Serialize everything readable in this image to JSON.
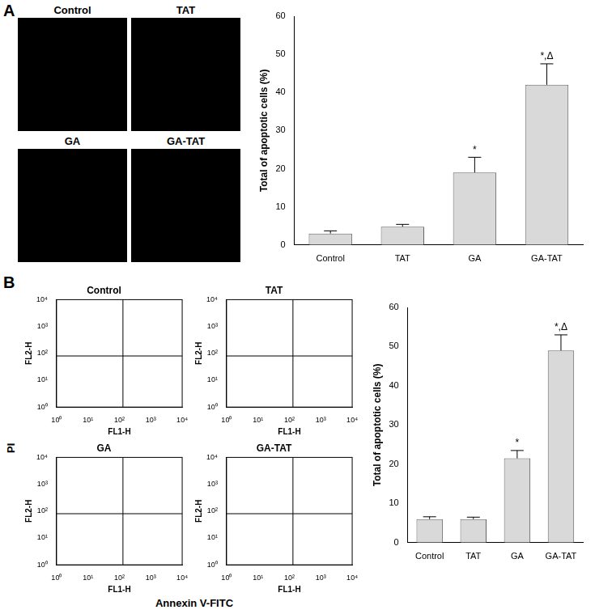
{
  "panel_labels": [
    "A",
    "B"
  ],
  "micrographs": {
    "labels": [
      "Control",
      "TAT",
      "GA",
      "GA-TAT"
    ]
  },
  "flow_axis_labels": {
    "x": "Annexin V-FITC",
    "y": "PI"
  },
  "chart_data": [
    {
      "type": "bar",
      "panel": "A",
      "y_label": "Total of apoptotic cells (%)",
      "categories": [
        "Control",
        "TAT",
        "GA",
        "GA-TAT"
      ],
      "values": [
        3,
        4.8,
        19,
        42
      ],
      "errors": [
        0.7,
        0.6,
        4,
        5.5
      ],
      "annotations": [
        null,
        null,
        "*",
        "*,Δ"
      ],
      "color": "#d9d9d9",
      "ylim": [
        0,
        60
      ],
      "yticks": [
        0,
        10,
        20,
        30,
        40,
        50,
        60
      ],
      "grid": false
    },
    {
      "type": "scatter",
      "panel": "B",
      "title": "Control",
      "x_label": "FL1-H",
      "y_label": "FL2-H",
      "log": true,
      "grid": false,
      "xlim": [
        1,
        10000
      ],
      "ylim": [
        1,
        10000
      ],
      "xticks": [
        {
          "value": 1,
          "label": "10⁰"
        },
        {
          "value": 10,
          "label": "10¹"
        },
        {
          "value": 100,
          "label": "10²"
        },
        {
          "value": 1000,
          "label": "10³"
        },
        {
          "value": 10000,
          "label": "10⁴"
        }
      ],
      "yticks": [
        {
          "value": 1,
          "label": "10⁰"
        },
        {
          "value": 10,
          "label": "10¹"
        },
        {
          "value": 100,
          "label": "10²"
        },
        {
          "value": 1000,
          "label": "10³"
        },
        {
          "value": 10000,
          "label": "10⁴"
        }
      ],
      "quadrant_gates": {
        "x": 130,
        "y": 80
      }
    },
    {
      "type": "scatter",
      "panel": "B",
      "title": "TAT",
      "x_label": "FL1-H",
      "y_label": "FL2-H",
      "log": true,
      "grid": false,
      "xlim": [
        1,
        10000
      ],
      "ylim": [
        1,
        10000
      ],
      "xticks": [
        {
          "value": 1,
          "label": "10⁰"
        },
        {
          "value": 10,
          "label": "10¹"
        },
        {
          "value": 100,
          "label": "10²"
        },
        {
          "value": 1000,
          "label": "10³"
        },
        {
          "value": 10000,
          "label": "10⁴"
        }
      ],
      "yticks": [
        {
          "value": 1,
          "label": "10⁰"
        },
        {
          "value": 10,
          "label": "10¹"
        },
        {
          "value": 100,
          "label": "10²"
        },
        {
          "value": 1000,
          "label": "10³"
        },
        {
          "value": 10000,
          "label": "10⁴"
        }
      ],
      "quadrant_gates": {
        "x": 130,
        "y": 80
      }
    },
    {
      "type": "scatter",
      "panel": "B",
      "title": "GA",
      "x_label": "FL1-H",
      "y_label": "FL2-H",
      "log": true,
      "grid": false,
      "xlim": [
        1,
        10000
      ],
      "ylim": [
        1,
        10000
      ],
      "xticks": [
        {
          "value": 1,
          "label": "10⁰"
        },
        {
          "value": 10,
          "label": "10¹"
        },
        {
          "value": 100,
          "label": "10²"
        },
        {
          "value": 1000,
          "label": "10³"
        },
        {
          "value": 10000,
          "label": "10⁴"
        }
      ],
      "yticks": [
        {
          "value": 1,
          "label": "10⁰"
        },
        {
          "value": 10,
          "label": "10¹"
        },
        {
          "value": 100,
          "label": "10²"
        },
        {
          "value": 1000,
          "label": "10³"
        },
        {
          "value": 10000,
          "label": "10⁴"
        }
      ],
      "quadrant_gates": {
        "x": 130,
        "y": 80
      }
    },
    {
      "type": "scatter",
      "panel": "B",
      "title": "GA-TAT",
      "x_label": "FL1-H",
      "y_label": "FL2-H",
      "log": true,
      "grid": false,
      "xlim": [
        1,
        10000
      ],
      "ylim": [
        1,
        10000
      ],
      "xticks": [
        {
          "value": 1,
          "label": "10⁰"
        },
        {
          "value": 10,
          "label": "10¹"
        },
        {
          "value": 100,
          "label": "10²"
        },
        {
          "value": 1000,
          "label": "10³"
        },
        {
          "value": 10000,
          "label": "10⁴"
        }
      ],
      "yticks": [
        {
          "value": 1,
          "label": "10⁰"
        },
        {
          "value": 10,
          "label": "10¹"
        },
        {
          "value": 100,
          "label": "10²"
        },
        {
          "value": 1000,
          "label": "10³"
        },
        {
          "value": 10000,
          "label": "10⁴"
        }
      ],
      "quadrant_gates": {
        "x": 130,
        "y": 80
      }
    },
    {
      "type": "bar",
      "panel": "B",
      "y_label": "Total of apoptotic cells (%)",
      "categories": [
        "Control",
        "TAT",
        "GA",
        "GA-TAT"
      ],
      "values": [
        6,
        6,
        21.5,
        49
      ],
      "errors": [
        0.6,
        0.5,
        2,
        4
      ],
      "annotations": [
        null,
        null,
        "*",
        "*,Δ"
      ],
      "color": "#d9d9d9",
      "ylim": [
        0,
        60
      ],
      "yticks": [
        0,
        10,
        20,
        30,
        40,
        50,
        60
      ],
      "grid": false
    }
  ]
}
